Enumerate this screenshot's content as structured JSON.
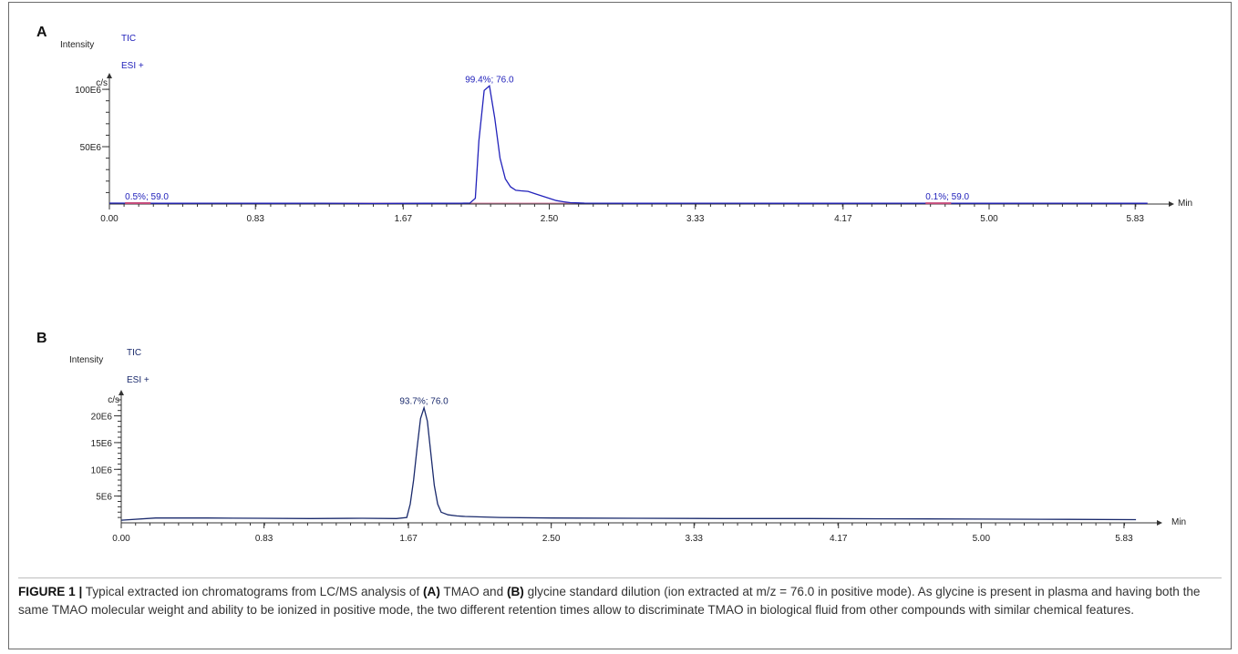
{
  "chart_data": [
    {
      "panel": "A",
      "type": "line",
      "title": "",
      "xlabel": "Min",
      "ylabel": "Intensity",
      "y_unit": "c/s",
      "trace_label": "TIC",
      "mode_label": "ESI +",
      "x_ticks": [
        "0.00",
        "0.83",
        "1.67",
        "2.50",
        "3.33",
        "4.17",
        "5.00",
        "5.83"
      ],
      "y_ticks": [
        "50E6",
        "100E6"
      ],
      "xlim": [
        0,
        6.0
      ],
      "ylim": [
        0,
        108000000
      ],
      "grid": false,
      "color": "#2222bb",
      "series": [
        {
          "x": [
            0.0,
            0.3,
            0.6,
            0.9,
            1.2,
            1.5,
            1.8,
            2.0,
            2.05,
            2.08,
            2.1,
            2.13,
            2.16,
            2.19,
            2.22,
            2.25,
            2.28,
            2.31,
            2.34,
            2.38,
            2.42,
            2.46,
            2.5,
            2.54,
            2.58,
            2.62,
            2.7,
            3.0,
            3.5,
            4.0,
            4.5,
            5.0,
            5.5,
            5.9
          ],
          "y": [
            800000,
            600000,
            700000,
            600000,
            700000,
            500000,
            600000,
            700000,
            900000,
            5000000,
            55000000,
            99000000,
            103000000,
            75000000,
            40000000,
            22000000,
            15000000,
            12000000,
            11500000,
            11000000,
            9000000,
            7000000,
            5000000,
            3000000,
            2000000,
            1200000,
            800000,
            600000,
            700000,
            600000,
            700000,
            600000,
            700000,
            600000
          ]
        }
      ],
      "annotations": [
        {
          "text": "99.4%; 76.0",
          "x": 2.16,
          "y": 103000000
        },
        {
          "text": "0.5%; 59.0",
          "x": 0.12,
          "y": 800000
        },
        {
          "text": "0.1%; 59.0",
          "x": 4.67,
          "y": 700000
        }
      ]
    },
    {
      "panel": "B",
      "type": "line",
      "title": "",
      "xlabel": "Min",
      "ylabel": "Intensity",
      "y_unit": "c/s",
      "trace_label": "TIC",
      "mode_label": "ESI +",
      "x_ticks": [
        "0.00",
        "0.83",
        "1.67",
        "2.50",
        "3.33",
        "4.17",
        "5.00",
        "5.83"
      ],
      "y_ticks": [
        "5E6",
        "10E6",
        "15E6",
        "20E6"
      ],
      "xlim": [
        0,
        6.0
      ],
      "ylim": [
        0,
        23500000
      ],
      "grid": false,
      "color": "#1a2a6c",
      "series": [
        {
          "x": [
            0.0,
            0.2,
            0.5,
            0.8,
            1.1,
            1.4,
            1.6,
            1.66,
            1.68,
            1.7,
            1.72,
            1.74,
            1.76,
            1.78,
            1.8,
            1.82,
            1.84,
            1.86,
            1.9,
            1.95,
            2.0,
            2.2,
            2.5,
            3.0,
            3.5,
            4.0,
            4.5,
            5.0,
            5.5,
            5.9
          ],
          "y": [
            500000,
            900000,
            900000,
            850000,
            800000,
            850000,
            800000,
            1000000,
            3500000,
            8000000,
            14000000,
            19500000,
            21500000,
            19000000,
            13000000,
            7000000,
            3500000,
            2000000,
            1500000,
            1300000,
            1200000,
            1000000,
            900000,
            850000,
            800000,
            800000,
            750000,
            700000,
            650000,
            600000
          ]
        }
      ],
      "annotations": [
        {
          "text": "93.7%; 76.0",
          "x": 1.76,
          "y": 21500000
        }
      ]
    }
  ],
  "caption": {
    "label": "FIGURE 1 |",
    "part1": " Typical extracted ion chromatograms from LC/MS analysis of ",
    "ref_a": "(A)",
    "part2": " TMAO and ",
    "ref_b": "(B)",
    "part3": " glycine standard dilution (ion extracted at m/z = 76.0 in positive mode). As glycine is present in plasma and having both the same TMAO molecular weight and ability to be ionized in positive mode, the two different retention times allow to discriminate TMAO in biological fluid from other compounds with similar chemical features."
  }
}
